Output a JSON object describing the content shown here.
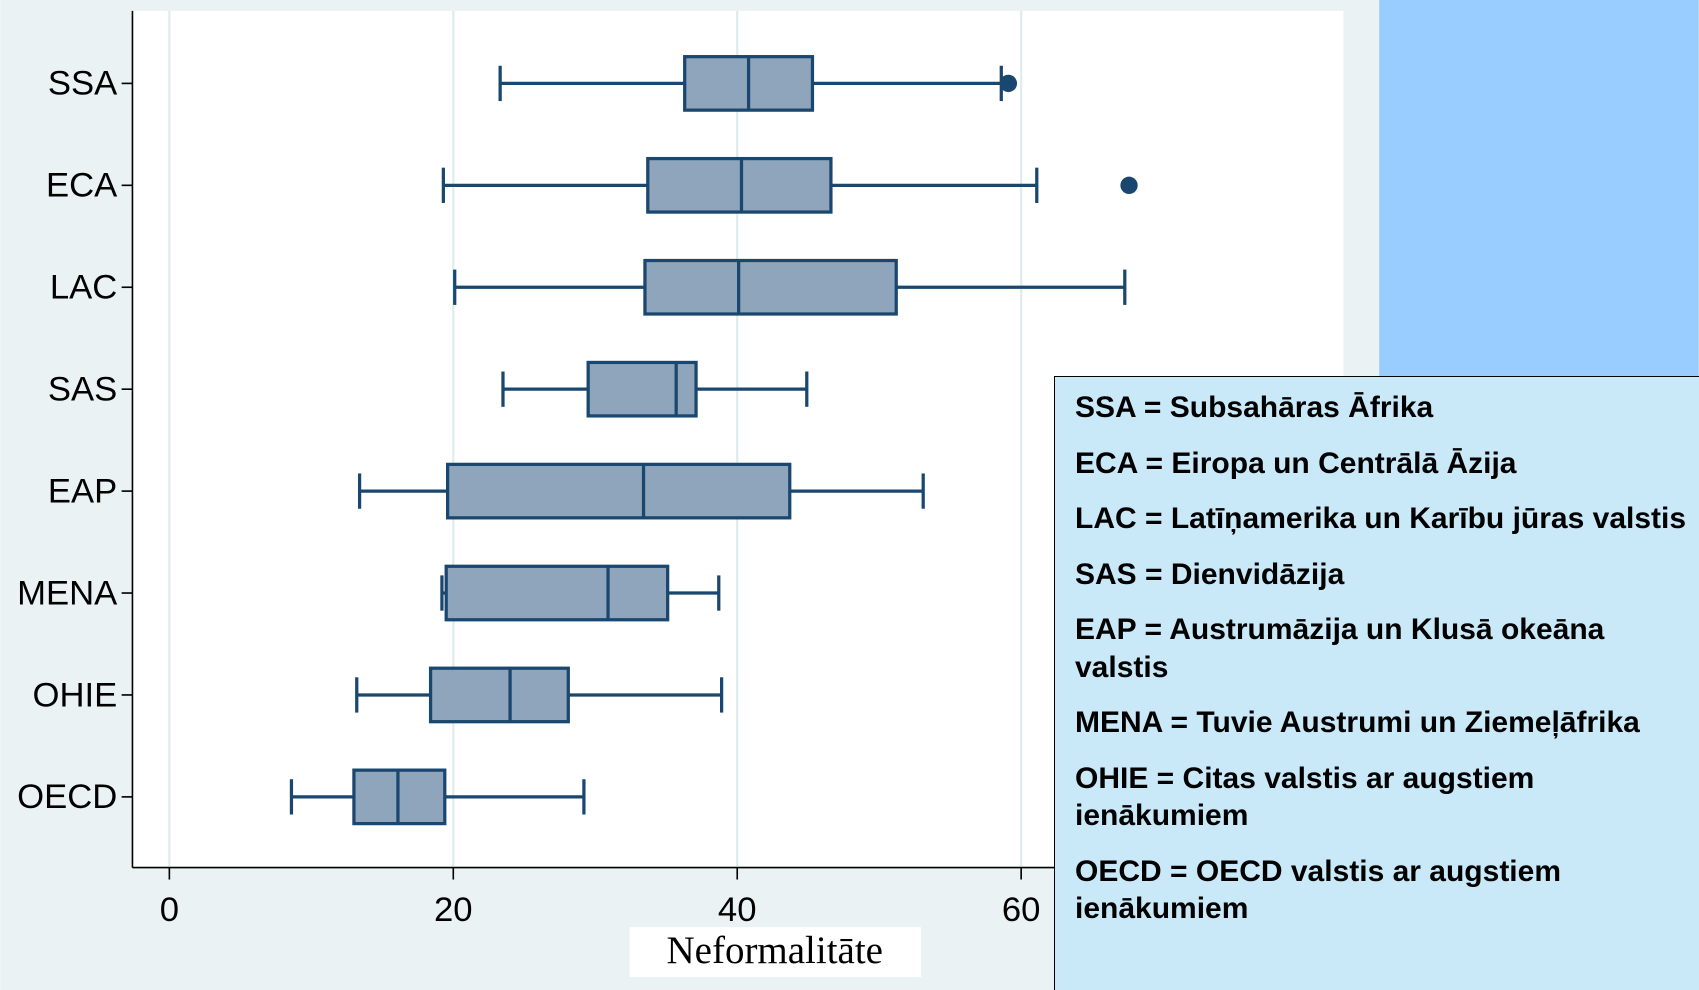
{
  "chart_data": {
    "type": "box",
    "orientation": "horizontal",
    "x_label": "Neformalitāte",
    "categories": [
      "SSA",
      "ECA",
      "LAC",
      "SAS",
      "EAP",
      "MENA",
      "OHIE",
      "OECD"
    ],
    "boxes": [
      {
        "low": 23.3,
        "q1": 36.3,
        "median": 40.8,
        "q3": 45.3,
        "high": 58.6,
        "outliers": [
          59.1
        ]
      },
      {
        "low": 19.3,
        "q1": 33.7,
        "median": 40.3,
        "q3": 46.6,
        "high": 61.1,
        "outliers": [
          67.6
        ]
      },
      {
        "low": 20.1,
        "q1": 33.5,
        "median": 40.1,
        "q3": 51.2,
        "high": 67.3,
        "outliers": []
      },
      {
        "low": 23.5,
        "q1": 29.5,
        "median": 35.7,
        "q3": 37.1,
        "high": 44.9,
        "outliers": []
      },
      {
        "low": 13.4,
        "q1": 19.6,
        "median": 33.4,
        "q3": 43.7,
        "high": 53.1,
        "outliers": []
      },
      {
        "low": 19.2,
        "q1": 19.5,
        "median": 30.9,
        "q3": 35.1,
        "high": 38.7,
        "outliers": []
      },
      {
        "low": 13.2,
        "q1": 18.4,
        "median": 24.0,
        "q3": 28.1,
        "high": 38.9,
        "outliers": []
      },
      {
        "low": 8.6,
        "q1": 13.0,
        "median": 16.1,
        "q3": 19.4,
        "high": 29.2,
        "outliers": []
      }
    ],
    "color": "#8fa5bb",
    "line_color": "#1a476f",
    "xlim": [
      -2.6,
      82.7
    ],
    "xticks": [
      0,
      20,
      40,
      60
    ],
    "grid": true,
    "notes": [
      "SSA = Subsahāras Āfrika",
      "ECA = Eiropa un Centrālā Āzija",
      "LAC = Latīņamerika un Karību jūras valstis",
      "SAS = Dienvidāzija",
      "EAP = Austrumāzija un Klusā okeāna valstis",
      "MENA = Tuvie Austrumi un Ziemeļāfrika",
      "OHIE = Citas valstis ar augstiem ienākumiem",
      "OECD = OECD valstis ar augstiem ienākumiem"
    ]
  }
}
